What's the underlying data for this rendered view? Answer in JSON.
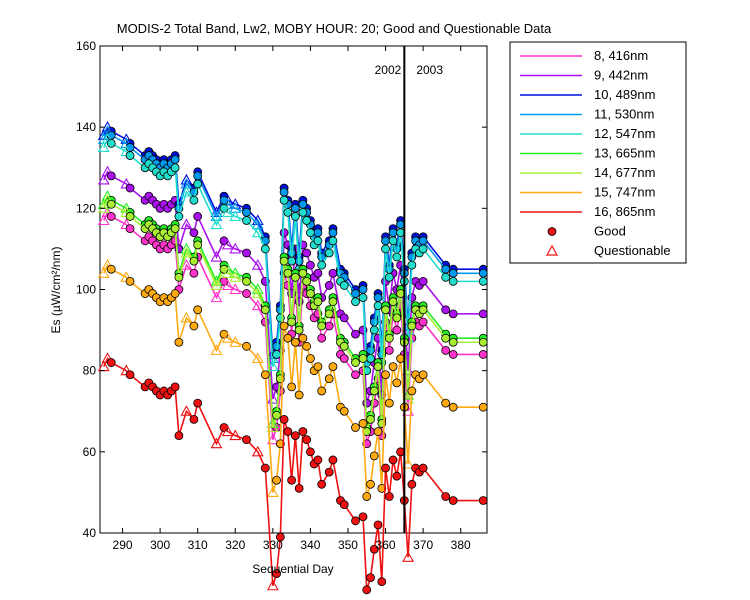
{
  "chart_data": {
    "type": "line",
    "title": "MODIS-2 Total Band,  Lw2, MOBY HOUR: 20;  Good and Questionable Data",
    "xlabel": "Sequential Day",
    "ylabel": "Es (µW/cm²/nm)",
    "xlim": [
      284,
      387
    ],
    "ylim": [
      40,
      160
    ],
    "xticks": [
      290,
      300,
      310,
      320,
      330,
      340,
      350,
      360,
      370,
      380
    ],
    "yticks": [
      40,
      60,
      80,
      100,
      120,
      140,
      160
    ],
    "grid": false,
    "legend_position": "outside-right",
    "year_divider": {
      "x": 365,
      "left_label": "2002",
      "right_label": "2003"
    },
    "x": [
      285,
      286,
      287,
      291,
      292,
      296,
      297,
      298,
      299,
      300,
      301,
      302,
      303,
      304,
      305,
      307,
      309,
      310,
      315,
      317,
      318,
      320,
      323,
      326,
      328,
      330,
      331,
      332,
      333,
      334,
      335,
      336,
      337,
      338,
      339,
      340,
      341,
      342,
      343,
      345,
      346,
      348,
      349,
      352,
      354,
      355,
      356,
      357,
      358,
      359,
      360,
      361,
      362,
      363,
      364,
      365,
      366,
      367,
      368,
      369,
      370,
      376,
      378,
      386
    ],
    "series": [
      {
        "name": "8, 416nm",
        "color": "#ff33cc",
        "base": 117,
        "offset": 0
      },
      {
        "name": "9, 442nm",
        "color": "#aa11ee",
        "base": 128,
        "offset": 10
      },
      {
        "name": "10, 489nm",
        "color": "#0011dd",
        "base": 138,
        "offset": 21
      },
      {
        "name": "11, 530nm",
        "color": "#0099ee",
        "base": 137,
        "offset": 20
      },
      {
        "name": "12, 547nm",
        "color": "#22ddcc",
        "base": 135,
        "offset": 18
      },
      {
        "name": "13, 665nm",
        "color": "#22ee22",
        "base": 116,
        "offset": 4
      },
      {
        "name": "14, 677nm",
        "color": "#aaee33",
        "base": 114,
        "offset": 3
      },
      {
        "name": "15, 747nm",
        "color": "#ffaa11",
        "base": 97,
        "offset": -13
      },
      {
        "name": "16, 865nm",
        "color": "#ee1111",
        "base": 74,
        "offset": -36
      }
    ],
    "profile": [
      117,
      119,
      118,
      116,
      115,
      112,
      113,
      112,
      111,
      110,
      111,
      110,
      111,
      112,
      100,
      106,
      104,
      108,
      98,
      102,
      101,
      100,
      99,
      96,
      92,
      63,
      66,
      75,
      104,
      101,
      89,
      100,
      87,
      101,
      99,
      96,
      93,
      94,
      88,
      91,
      94,
      84,
      83,
      79,
      80,
      62,
      65,
      72,
      78,
      64,
      92,
      85,
      94,
      90,
      96,
      84,
      70,
      88,
      92,
      91,
      92,
      85,
      84,
      84
    ],
    "good_indices": [
      2,
      4,
      5,
      6,
      7,
      8,
      9,
      10,
      11,
      12,
      13,
      14,
      16,
      17,
      19,
      22,
      24,
      26,
      27,
      28,
      29,
      30,
      31,
      32,
      33,
      34,
      35,
      36,
      37,
      38,
      39,
      40,
      41,
      42,
      43,
      44,
      45,
      46,
      47,
      48,
      49,
      50,
      51,
      52,
      53,
      54,
      55,
      57,
      58,
      59,
      60,
      61,
      62,
      63
    ],
    "legend_good": "Good",
    "legend_questionable": "Questionable"
  }
}
